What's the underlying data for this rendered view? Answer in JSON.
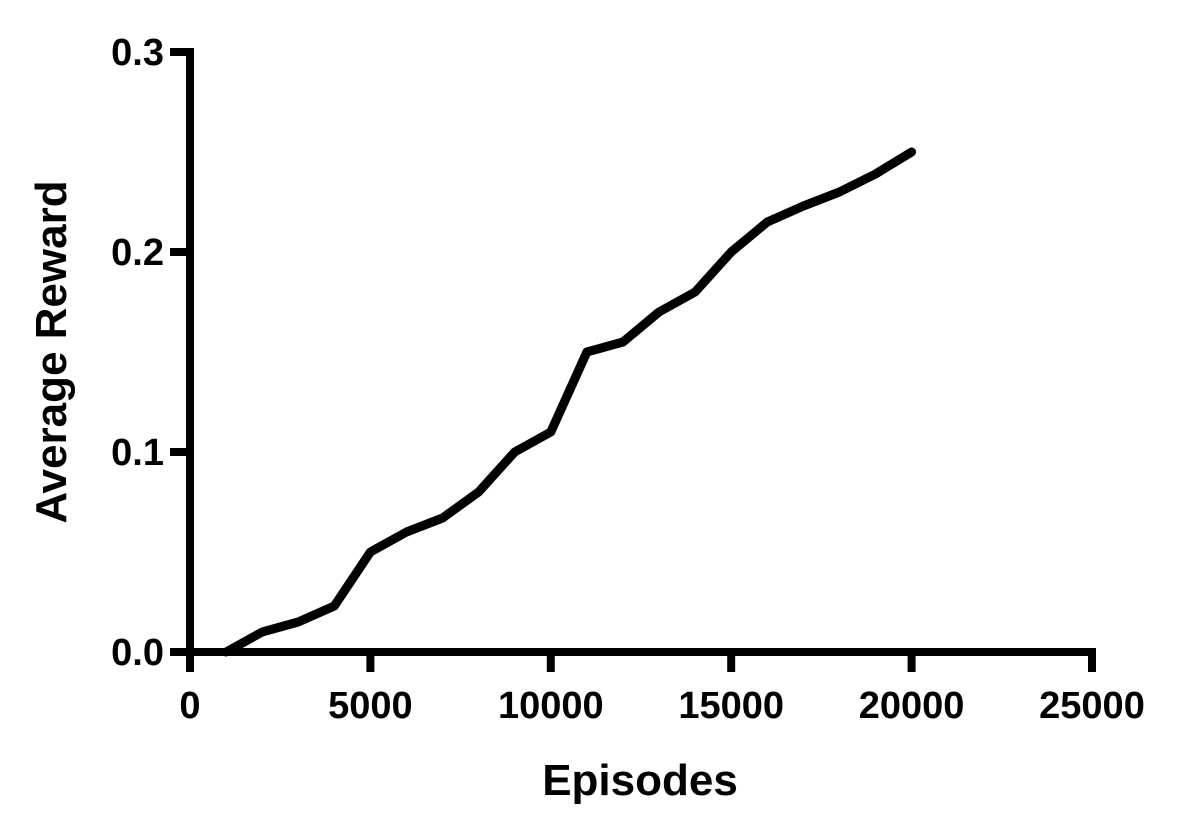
{
  "chart_data": {
    "type": "line",
    "title": "",
    "xlabel": "Episodes",
    "ylabel": "Average Reward",
    "xlim": [
      0,
      25000
    ],
    "ylim": [
      0,
      0.3
    ],
    "x_ticks": [
      0,
      5000,
      10000,
      15000,
      20000,
      25000
    ],
    "x_tick_labels": [
      "0",
      "5000",
      "10000",
      "15000",
      "20000",
      "25000"
    ],
    "y_ticks": [
      0,
      0.1,
      0.2,
      0.3
    ],
    "y_tick_labels": [
      "0.0",
      "0.1",
      "0.2",
      "0.3"
    ],
    "grid": false,
    "legend": "none",
    "line_color": "#000000",
    "series": [
      {
        "x": [
          1000,
          2000,
          3000,
          4000,
          5000,
          6000,
          7000,
          8000,
          9000,
          10000,
          11000,
          12000,
          13000,
          14000,
          15000,
          16000,
          17000,
          18000,
          19000,
          20000
        ],
        "y": [
          0.0,
          0.01,
          0.015,
          0.023,
          0.05,
          0.06,
          0.067,
          0.08,
          0.1,
          0.11,
          0.15,
          0.155,
          0.17,
          0.18,
          0.2,
          0.215,
          0.223,
          0.23,
          0.239,
          0.25
        ]
      }
    ]
  }
}
